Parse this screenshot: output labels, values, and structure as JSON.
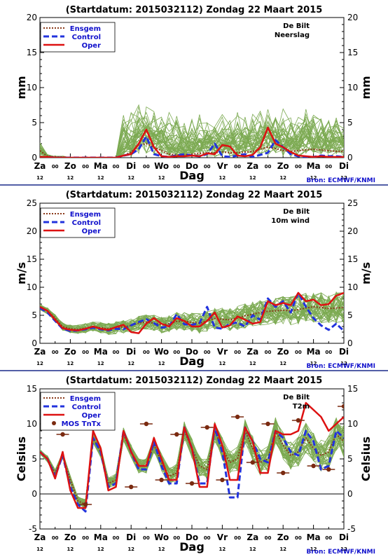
{
  "colors": {
    "ensemble_members": "#7caa52",
    "ensgem": "#8b3a1a",
    "control": "#2233dd",
    "oper": "#dd1111",
    "mos": "#7a2a10",
    "legend_text": "#1111cc",
    "separator": "#1a2a8a",
    "grid": "#000000"
  },
  "x_axis": {
    "xlabel": "Dag",
    "day_labels": [
      "Za",
      "Zo",
      "Ma",
      "Di",
      "Wo",
      "Do",
      "Vr",
      "Za",
      "Zo",
      "Ma",
      "Di"
    ],
    "mid_labels": [
      "00",
      "00",
      "00",
      "00",
      "00",
      "00",
      "00",
      "00",
      "00",
      "00"
    ],
    "sub_label": "12",
    "hours_range": [
      0,
      240
    ]
  },
  "source_label": "Bron: ECMWF/KNMI",
  "chart_data": [
    {
      "type": "line",
      "title": "(Startdatum: 2015032112)  Zondag    22 Maart    2015",
      "location": "De Bilt",
      "variable": "Neerslag",
      "ylabel": "mm",
      "ylim": [
        0,
        20
      ],
      "yticks": [
        0,
        5,
        10,
        15,
        20
      ],
      "legend": [
        "Ensgem",
        "Control",
        "Oper"
      ],
      "x_hours": [
        0,
        6,
        12,
        18,
        24,
        30,
        36,
        42,
        48,
        54,
        60,
        66,
        72,
        78,
        84,
        90,
        96,
        102,
        108,
        114,
        120,
        126,
        132,
        138,
        144,
        150,
        156,
        162,
        168,
        174,
        180,
        186,
        192,
        198,
        204,
        210,
        216,
        222,
        228,
        234,
        240
      ],
      "series": [
        {
          "name": "Ensgem",
          "values": [
            1,
            0.2,
            0.1,
            0.1,
            0,
            0,
            0,
            0,
            0,
            0,
            0,
            0.3,
            0.8,
            1.8,
            2,
            1.5,
            1,
            0.5,
            0.4,
            0.4,
            0.5,
            0.6,
            0.7,
            0.7,
            0.8,
            0.7,
            0.7,
            0.8,
            0.9,
            1.2,
            1.5,
            1.3,
            1,
            0.9,
            1,
            1.1,
            1.2,
            1.1,
            1,
            0.9,
            0.9
          ]
        },
        {
          "name": "Control",
          "values": [
            0,
            0.1,
            0,
            0,
            0,
            0,
            0,
            0,
            0,
            0,
            0,
            0.3,
            0.5,
            1.2,
            3,
            0.5,
            0.2,
            0.1,
            0.3,
            0.5,
            0.3,
            0.2,
            0.5,
            2,
            0.2,
            0.1,
            0.3,
            0.5,
            0.1,
            0.4,
            0.7,
            2.5,
            1.5,
            0.5,
            0.2,
            0.1,
            0.1,
            0.3,
            0.2,
            0.2,
            0.1
          ]
        },
        {
          "name": "Oper",
          "values": [
            0.1,
            0.1,
            0,
            0,
            0,
            0,
            0,
            0,
            0,
            0,
            0,
            0.3,
            0.5,
            2,
            4,
            1.5,
            0.2,
            0.1,
            0.2,
            0.2,
            0.3,
            0.2,
            0.6,
            0.5,
            1.8,
            1.6,
            0.3,
            0.2,
            0.4,
            1.5,
            4.3,
            2,
            1.5,
            0.8,
            0.3,
            0.2,
            0.1,
            0.2,
            0.1,
            0.1,
            0.1
          ]
        }
      ]
    },
    {
      "type": "line",
      "title": "(Startdatum: 2015032112)  Zondag    22 Maart    2015",
      "location": "De Bilt",
      "variable": "10m wind",
      "ylabel": "m/s",
      "ylim": [
        0,
        25
      ],
      "yticks": [
        0,
        5,
        10,
        15,
        20,
        25
      ],
      "legend": [
        "Ensgem",
        "Control",
        "Oper"
      ],
      "x_hours": [
        0,
        6,
        12,
        18,
        24,
        30,
        36,
        42,
        48,
        54,
        60,
        66,
        72,
        78,
        84,
        90,
        96,
        102,
        108,
        114,
        120,
        126,
        132,
        138,
        144,
        150,
        156,
        162,
        168,
        174,
        180,
        186,
        192,
        198,
        204,
        210,
        216,
        222,
        228,
        234,
        240
      ],
      "series": [
        {
          "name": "Ensgem",
          "values": [
            6.5,
            5.8,
            4.5,
            3,
            2.6,
            2.5,
            2.7,
            3,
            2.8,
            2.6,
            2.8,
            2.9,
            3.2,
            3.6,
            3.8,
            3.6,
            3.3,
            3.5,
            3.9,
            4,
            3.7,
            3.6,
            4,
            4.4,
            4.3,
            4.2,
            4.5,
            4.9,
            5.2,
            5.5,
            5.7,
            5.8,
            5.9,
            5.8,
            6,
            6.3,
            6.5,
            6.4,
            6.2,
            6.3,
            6.4
          ]
        },
        {
          "name": "Control",
          "values": [
            6.3,
            5.5,
            4,
            2.6,
            2.2,
            2.3,
            2.5,
            2.8,
            2.5,
            2.3,
            2.6,
            2.5,
            3.2,
            3.8,
            4.3,
            3.6,
            2.8,
            3,
            5.2,
            3.4,
            3.3,
            3.6,
            6.5,
            2.8,
            2.6,
            3.5,
            3.7,
            3,
            5,
            4.2,
            8,
            6.5,
            7.5,
            5.5,
            9,
            6.5,
            4.5,
            3.2,
            2.4,
            3.5,
            2.2
          ]
        },
        {
          "name": "Oper",
          "values": [
            6.5,
            5.8,
            4.2,
            2.7,
            2.4,
            2.3,
            2.6,
            3,
            2.6,
            2.4,
            2.9,
            3.3,
            2,
            1.8,
            3.5,
            4.5,
            3.5,
            3,
            4.5,
            4,
            3,
            3,
            4,
            5.5,
            2.8,
            3.2,
            4.8,
            4.2,
            3.5,
            3.8,
            7.5,
            6.8,
            7.2,
            6.8,
            9,
            7.5,
            7.8,
            6.8,
            7,
            8.5,
            9
          ]
        }
      ]
    },
    {
      "type": "line",
      "title": "(Startdatum: 2015032112)  Zondag    22 Maart    2015",
      "location": "De Bilt",
      "variable": "T2m",
      "ylabel": "Celsius",
      "ylim": [
        -5,
        15
      ],
      "yticks": [
        -5,
        0,
        5,
        10,
        15
      ],
      "legend": [
        "Ensgem",
        "Control",
        "Oper",
        "MOS TnTx"
      ],
      "x_hours": [
        0,
        6,
        12,
        18,
        24,
        30,
        36,
        42,
        48,
        54,
        60,
        66,
        72,
        78,
        84,
        90,
        96,
        102,
        108,
        114,
        120,
        126,
        132,
        138,
        144,
        150,
        156,
        162,
        168,
        174,
        180,
        186,
        192,
        198,
        204,
        210,
        216,
        222,
        228,
        234,
        240
      ],
      "series": [
        {
          "name": "Ensgem",
          "values": [
            6,
            5,
            3,
            5.5,
            2,
            -1,
            -1.5,
            8,
            6,
            1.5,
            2,
            8.5,
            6,
            4,
            4,
            7,
            4.5,
            2.5,
            3,
            9,
            6.5,
            4,
            3.5,
            9,
            6.5,
            4.5,
            5,
            9,
            6.5,
            4.5,
            5,
            9,
            7,
            5.5,
            6,
            8,
            6.5,
            5.5,
            6,
            8.5,
            7.5
          ]
        },
        {
          "name": "Control",
          "values": [
            6,
            5,
            2.5,
            5.5,
            1,
            -1.5,
            -2.5,
            8,
            6,
            1,
            1.5,
            9,
            6,
            3.5,
            3.5,
            7.5,
            4,
            1.5,
            1.5,
            9.5,
            6.5,
            1.5,
            1.5,
            9.5,
            6,
            -0.5,
            -0.5,
            9.5,
            7.5,
            5,
            4.5,
            9,
            8,
            6,
            5.5,
            9,
            7.5,
            3.5,
            4,
            9,
            8
          ]
        },
        {
          "name": "Oper",
          "values": [
            6,
            5,
            2.2,
            6,
            0.5,
            -2,
            -2,
            9,
            6.5,
            0.5,
            1,
            9,
            6,
            4,
            4,
            8,
            5,
            2,
            2,
            9.5,
            6.5,
            1,
            1,
            10,
            7,
            2,
            2,
            9.5,
            7.5,
            3,
            3,
            9,
            8.5,
            8.5,
            9,
            13,
            12,
            11,
            9,
            10,
            11
          ]
        }
      ],
      "mos_tntx": {
        "hours": [
          18,
          36,
          54,
          72,
          84,
          96,
          108,
          120,
          132,
          144,
          156,
          168,
          180,
          192,
          204,
          216,
          228,
          240
        ],
        "values": [
          8.5,
          -1.5,
          11,
          1,
          10,
          2,
          8.5,
          1.5,
          9.5,
          2,
          11,
          4.5,
          10,
          3,
          10.5,
          4,
          3.5,
          12.5
        ]
      }
    }
  ]
}
